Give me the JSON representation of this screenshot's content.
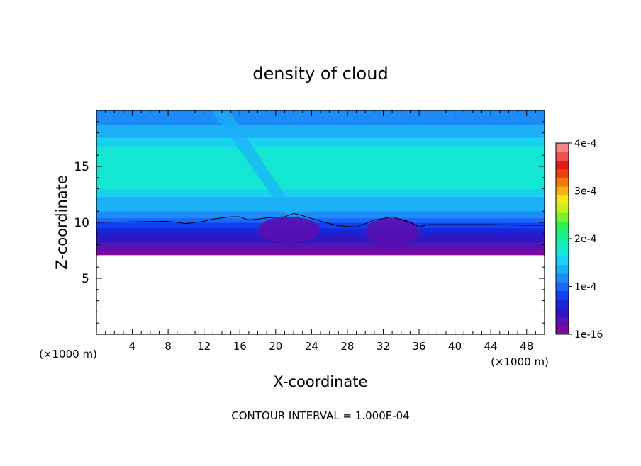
{
  "chart_data": {
    "type": "heatmap",
    "title": "density of cloud",
    "xlabel": "X-coordinate",
    "ylabel": "Z-coordinate",
    "x_unit_left": "(×1000 m)",
    "x_unit_right": "(×1000 m)",
    "footer": "CONTOUR INTERVAL = 1.000E-04",
    "xlim": [
      0,
      50
    ],
    "ylim": [
      0,
      20
    ],
    "x_ticks": [
      4,
      8,
      12,
      16,
      20,
      24,
      28,
      32,
      36,
      40,
      44,
      48
    ],
    "y_ticks": [
      5,
      10,
      15
    ],
    "colorbar": {
      "min": 1e-16,
      "max": 0.0004,
      "ticks": [
        {
          "value": 1e-16,
          "label": "1e-16"
        },
        {
          "value": 0.0001,
          "label": "1e-4"
        },
        {
          "value": 0.0002,
          "label": "2e-4"
        },
        {
          "value": 0.0003,
          "label": "3e-4"
        },
        {
          "value": 0.0004,
          "label": "4e-4"
        }
      ],
      "colors": [
        "#7a0aa0",
        "#5a0fb0",
        "#2f16c0",
        "#1a24d8",
        "#1040f0",
        "#1a68f8",
        "#1e8cf8",
        "#1cb0f8",
        "#18d2f0",
        "#14e6d4",
        "#12f0b4",
        "#18f088",
        "#2ef050",
        "#7cf028",
        "#c8f020",
        "#f0e818",
        "#f8b014",
        "#f87810",
        "#f04010",
        "#e01818",
        "#f05050",
        "#f88888"
      ]
    },
    "contour_level": 0.0001,
    "field_bands_z_top": [
      {
        "z_top": 7.1,
        "value": 0.0
      },
      {
        "z_top": 7.5,
        "value": 5e-06
      },
      {
        "z_top": 8.2,
        "value": 2e-05
      },
      {
        "z_top": 8.9,
        "value": 4e-05
      },
      {
        "z_top": 9.5,
        "value": 6e-05
      },
      {
        "z_top": 10.0,
        "value": 9e-05
      },
      {
        "z_top": 10.4,
        "value": 0.000105
      },
      {
        "z_top": 11.0,
        "value": 0.00012
      },
      {
        "z_top": 12.3,
        "value": 0.000135
      },
      {
        "z_top": 13.0,
        "value": 0.00015
      },
      {
        "z_top": 16.8,
        "value": 0.00017
      },
      {
        "z_top": 17.6,
        "value": 0.00015
      },
      {
        "z_top": 18.7,
        "value": 0.000135
      },
      {
        "z_top": 20.0,
        "value": 0.00012
      }
    ],
    "contour_1e4_z_by_x": [
      [
        0,
        10.0
      ],
      [
        4,
        10.05
      ],
      [
        8,
        10.1
      ],
      [
        10,
        9.9
      ],
      [
        12,
        10.1
      ],
      [
        13,
        10.3
      ],
      [
        15,
        10.5
      ],
      [
        16,
        10.5
      ],
      [
        17,
        10.2
      ],
      [
        19,
        10.4
      ],
      [
        21,
        10.5
      ],
      [
        22,
        10.8
      ],
      [
        23,
        10.6
      ],
      [
        25,
        10.1
      ],
      [
        27,
        9.7
      ],
      [
        29,
        9.6
      ],
      [
        31,
        10.2
      ],
      [
        33,
        10.5
      ],
      [
        35,
        10.0
      ],
      [
        36,
        9.6
      ],
      [
        37,
        9.8
      ],
      [
        40,
        9.8
      ],
      [
        44,
        9.8
      ],
      [
        48,
        9.75
      ],
      [
        50,
        9.75
      ]
    ],
    "low_density_cells": [
      {
        "x_range": [
          18,
          25
        ],
        "z_range": [
          8.2,
          10.5
        ],
        "value": 3e-05
      },
      {
        "x_range": [
          30,
          36
        ],
        "z_range": [
          8.0,
          10.4
        ],
        "value": 3e-05
      }
    ]
  }
}
